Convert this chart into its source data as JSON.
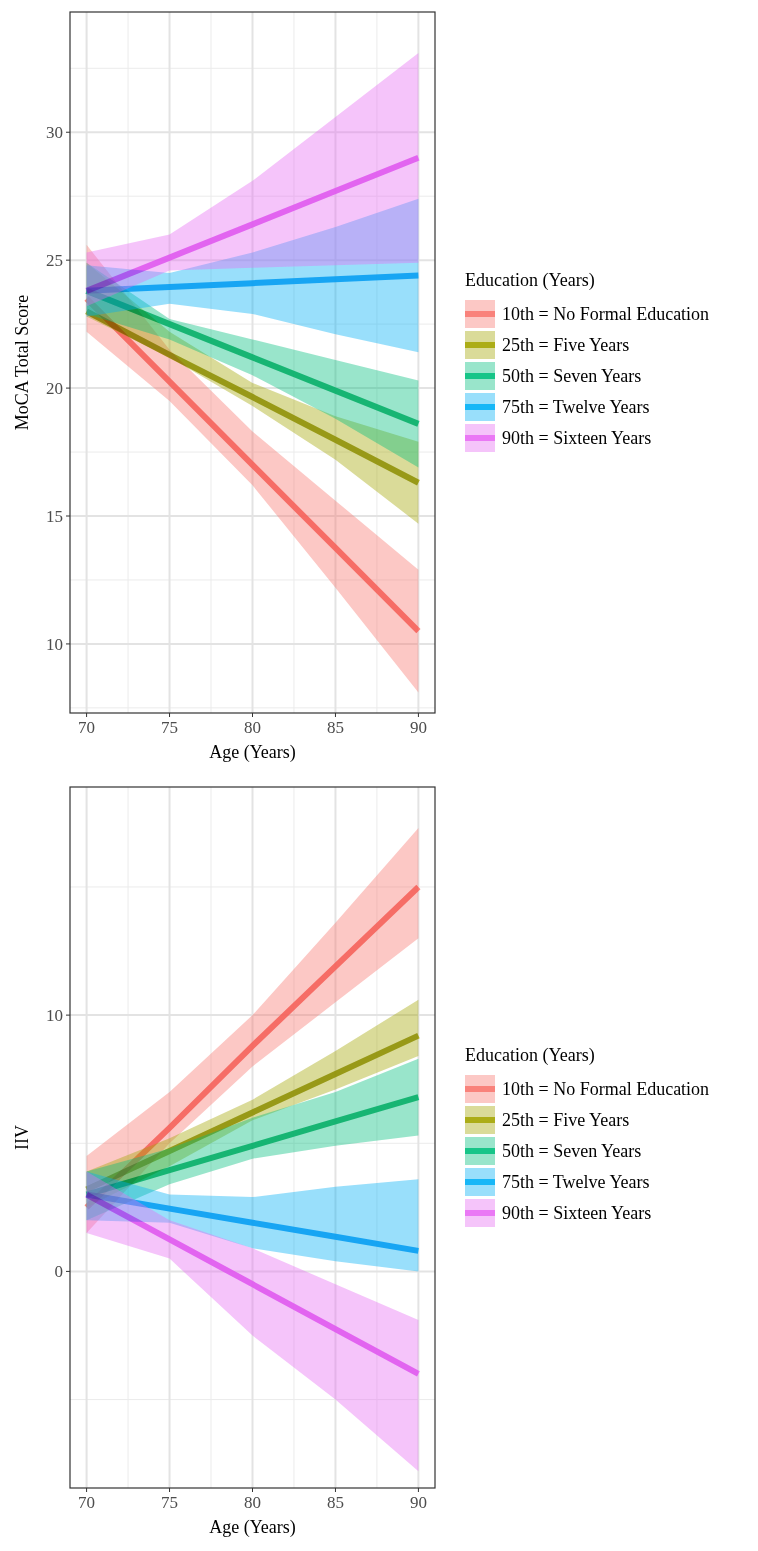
{
  "chart_data": [
    {
      "type": "line",
      "xlabel": "Age (Years)",
      "ylabel": "MoCA Total Score",
      "legend_title": "Education (Years)",
      "legend": "right",
      "grid": true,
      "xlim": [
        69,
        91
      ],
      "xticks": [
        70,
        75,
        80,
        85,
        90
      ],
      "ylim": [
        7.3,
        34.7
      ],
      "yticks": [
        10,
        15,
        20,
        25,
        30
      ],
      "x": [
        70,
        75,
        80,
        85,
        90
      ],
      "series": [
        {
          "name": "10th = No Formal Education",
          "color": "#f8766d",
          "values": [
            23.5,
            20.25,
            17,
            13.75,
            10.5
          ],
          "lower": [
            22.2,
            19.5,
            16.2,
            12.2,
            8.1
          ],
          "upper": [
            25.6,
            21.5,
            18.3,
            15.6,
            12.9
          ]
        },
        {
          "name": "25th = Five Years",
          "color": "#a3a500",
          "values": [
            23,
            21.3,
            19.65,
            17.98,
            16.3
          ],
          "lower": [
            22.8,
            21.2,
            19.3,
            17.2,
            14.7
          ],
          "upper": [
            24.9,
            22.2,
            20.2,
            18.9,
            17.9
          ]
        },
        {
          "name": "50th = Seven Years",
          "color": "#00bf7d",
          "values": [
            23.8,
            22.5,
            21.2,
            19.9,
            18.6
          ],
          "lower": [
            22.9,
            21.9,
            20.5,
            18.8,
            16.9
          ],
          "upper": [
            24.9,
            22.7,
            21.9,
            21.1,
            20.3
          ]
        },
        {
          "name": "75th = Twelve Years",
          "color": "#00b0f6",
          "values": [
            23.8,
            23.95,
            24.1,
            24.25,
            24.4
          ],
          "lower": [
            22.8,
            23.3,
            22.9,
            22.1,
            21.4
          ],
          "upper": [
            24.8,
            24.5,
            25.3,
            26.3,
            27.4
          ]
        },
        {
          "name": "90th = Sixteen Years",
          "color": "#e76bf3",
          "values": [
            23.8,
            25.1,
            26.4,
            27.7,
            29
          ],
          "lower": [
            23.2,
            24.6,
            24.7,
            24.8,
            24.9
          ],
          "upper": [
            25.3,
            26,
            28.1,
            30.6,
            33.1
          ]
        }
      ]
    },
    {
      "type": "line",
      "xlabel": "Age (Years)",
      "ylabel": "IIV",
      "legend_title": "Education (Years)",
      "legend": "right",
      "grid": true,
      "xlim": [
        69,
        91
      ],
      "xticks": [
        70,
        75,
        80,
        85,
        90
      ],
      "ylim": [
        -8.45,
        18.9
      ],
      "yticks": [
        0,
        10
      ],
      "x": [
        70,
        75,
        80,
        85,
        90
      ],
      "series": [
        {
          "name": "10th = No Formal Education",
          "color": "#f8766d",
          "values": [
            2.5,
            5.6,
            8.8,
            11.9,
            15.0
          ],
          "lower": [
            1.5,
            5.0,
            8.0,
            10.5,
            13.0
          ],
          "upper": [
            4.5,
            7.0,
            10.0,
            13.6,
            17.3
          ]
        },
        {
          "name": "25th = Five Years",
          "color": "#a3a500",
          "values": [
            3.2,
            4.7,
            6.2,
            7.7,
            9.2
          ],
          "lower": [
            2.5,
            4.1,
            5.9,
            7.1,
            8.4
          ],
          "upper": [
            3.9,
            5.2,
            6.7,
            8.6,
            10.6
          ]
        },
        {
          "name": "50th = Seven Years",
          "color": "#00bf7d",
          "values": [
            3.0,
            3.95,
            4.9,
            5.85,
            6.8
          ],
          "lower": [
            2.0,
            3.4,
            4.4,
            4.9,
            5.3
          ],
          "upper": [
            3.9,
            4.8,
            6.0,
            7.0,
            8.3
          ]
        },
        {
          "name": "75th = Twelve Years",
          "color": "#00b0f6",
          "values": [
            3.0,
            2.45,
            1.9,
            1.35,
            0.8
          ],
          "lower": [
            2.0,
            1.9,
            0.9,
            0.4,
            0.0
          ],
          "upper": [
            3.9,
            3.0,
            2.9,
            3.3,
            3.6
          ]
        },
        {
          "name": "90th = Sixteen Years",
          "color": "#e76bf3",
          "values": [
            3.0,
            1.25,
            -0.5,
            -2.25,
            -4.0
          ],
          "lower": [
            1.5,
            0.5,
            -2.5,
            -5.0,
            -7.8
          ],
          "upper": [
            3.9,
            2.0,
            0.9,
            -0.5,
            -1.9
          ]
        }
      ]
    }
  ]
}
